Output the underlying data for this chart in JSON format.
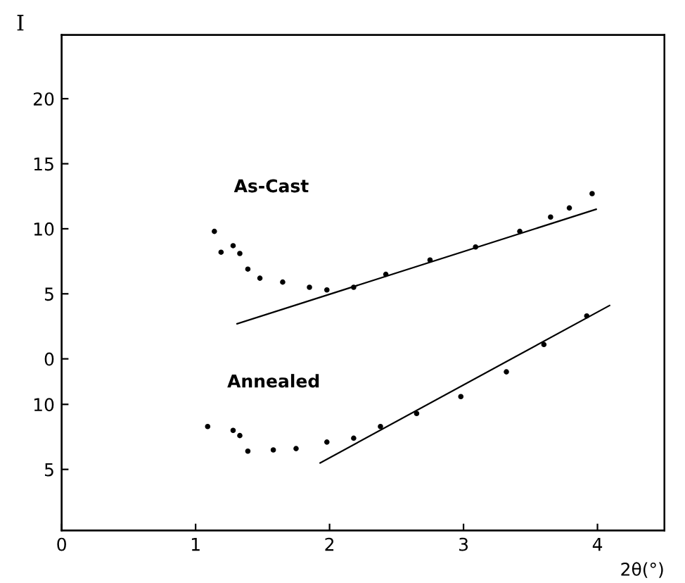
{
  "chart_data": {
    "type": "scatter",
    "xlabel": "2θ(°)",
    "y2label": "I",
    "xlim": [
      0,
      4.5
    ],
    "xticks": [
      0,
      1,
      2,
      3,
      4
    ],
    "ylim": [
      0.3,
      38.4
    ],
    "yticks": [
      5,
      10
    ],
    "y2lim": [
      -13.2,
      24.9
    ],
    "y2ticks": [
      0,
      5,
      10,
      15,
      20
    ],
    "grid": false,
    "legend": false,
    "series": [
      {
        "name": "As-Cast",
        "marker": "circle",
        "axis": "y2",
        "color": "#000000",
        "x": [
          1.14,
          1.19,
          1.28,
          1.33,
          1.39,
          1.48,
          1.65,
          1.85,
          1.98,
          2.18,
          2.42,
          2.75,
          3.09,
          3.42,
          3.65,
          3.79,
          3.96
        ],
        "values": [
          9.8,
          8.2,
          8.7,
          8.1,
          6.9,
          6.2,
          5.9,
          5.5,
          5.3,
          5.5,
          6.5,
          7.6,
          8.6,
          9.8,
          10.9,
          11.6,
          12.7
        ]
      },
      {
        "type": "line",
        "axis": "y2",
        "color": "#000000",
        "x": [
          1.31,
          3.99
        ],
        "values": [
          2.7,
          11.5
        ]
      },
      {
        "name": "Annealed",
        "marker": "circle",
        "color": "#000000",
        "x": [
          1.09,
          1.28,
          1.33,
          1.39,
          1.58,
          1.75,
          1.98,
          2.18,
          2.38,
          2.65,
          2.98,
          3.32,
          3.6,
          3.92
        ],
        "values": [
          8.3,
          8.0,
          7.6,
          6.4,
          6.5,
          6.6,
          7.1,
          7.4,
          8.3,
          9.3,
          10.6,
          12.5,
          14.6,
          16.8
        ]
      },
      {
        "type": "line",
        "color": "#000000",
        "x": [
          1.93,
          4.09
        ],
        "values": [
          5.5,
          17.6
        ]
      }
    ]
  }
}
